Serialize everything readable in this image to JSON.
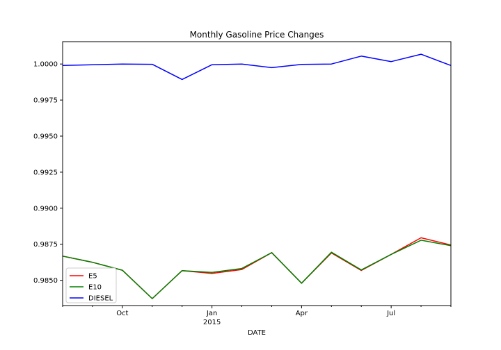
{
  "chart_data": {
    "type": "line",
    "title": "Monthly Gasoline Price Changes",
    "xlabel": "DATE",
    "ylabel": "",
    "x": [
      "2014-08",
      "2014-09",
      "2014-10",
      "2014-11",
      "2014-12",
      "2015-01",
      "2015-02",
      "2015-03",
      "2015-04",
      "2015-05",
      "2015-06",
      "2015-07",
      "2015-08",
      "2015-09"
    ],
    "x_ticks": [
      {
        "x": "2014-10",
        "label": "Oct",
        "sublabel": ""
      },
      {
        "x": "2015-01",
        "label": "Jan",
        "sublabel": "2015"
      },
      {
        "x": "2015-04",
        "label": "Apr",
        "sublabel": ""
      },
      {
        "x": "2015-07",
        "label": "Jul",
        "sublabel": ""
      }
    ],
    "ylim": [
      0.98325,
      1.00155
    ],
    "y_ticks": [
      "0.9850",
      "0.9875",
      "0.9900",
      "0.9925",
      "0.9950",
      "0.9975",
      "1.0000"
    ],
    "grid": false,
    "legend_position": "lower-left",
    "series": [
      {
        "name": "E5",
        "color": "#ff0000",
        "values": [
          0.98668,
          0.98625,
          0.9857,
          0.98373,
          0.98567,
          0.98548,
          0.98575,
          0.98692,
          0.9848,
          0.9869,
          0.98568,
          0.9868,
          0.98795,
          0.98745
        ]
      },
      {
        "name": "E10",
        "color": "#008000",
        "values": [
          0.98668,
          0.98625,
          0.9857,
          0.98373,
          0.98567,
          0.98555,
          0.98582,
          0.98692,
          0.9848,
          0.98695,
          0.98572,
          0.9868,
          0.98778,
          0.9874
        ]
      },
      {
        "name": "DIESEL",
        "color": "#0000ff",
        "values": [
          0.9999,
          0.99995,
          1.0,
          0.99998,
          0.99893,
          0.99995,
          1.0,
          0.99975,
          0.99997,
          1.0,
          1.00055,
          1.00017,
          1.00068,
          0.9999
        ]
      }
    ]
  }
}
